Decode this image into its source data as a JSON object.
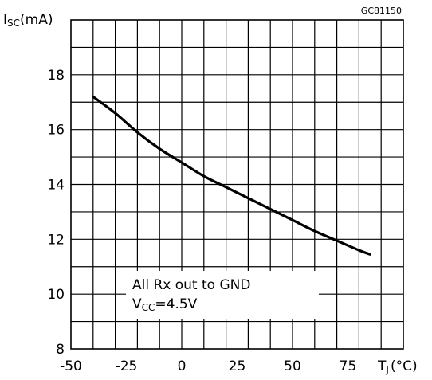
{
  "figure_code": "GC81150",
  "chart_data": {
    "type": "line",
    "xlabel": {
      "main": "T",
      "sub": "J",
      "unit": "(°C)"
    },
    "ylabel": {
      "main": "I",
      "sub": "SC",
      "unit": "(mA)"
    },
    "xlim": [
      -50,
      100
    ],
    "ylim": [
      8,
      20
    ],
    "x_ticks": [
      -50,
      -25,
      0,
      25,
      50,
      75
    ],
    "y_ticks": [
      8,
      10,
      12,
      14,
      16,
      18
    ],
    "grid": true,
    "series": [
      {
        "x": [
          -40,
          -30,
          -20,
          -10,
          0,
          10,
          20,
          30,
          40,
          50,
          60,
          70,
          80,
          85
        ],
        "values": [
          17.2,
          16.6,
          15.9,
          15.3,
          14.8,
          14.3,
          13.9,
          13.5,
          13.1,
          12.7,
          12.3,
          11.95,
          11.6,
          11.45
        ]
      }
    ],
    "annotation": {
      "line1": "All Rx out to GND",
      "line2_main": "V",
      "line2_sub": "CC",
      "line2_rest": "=4.5V"
    }
  }
}
